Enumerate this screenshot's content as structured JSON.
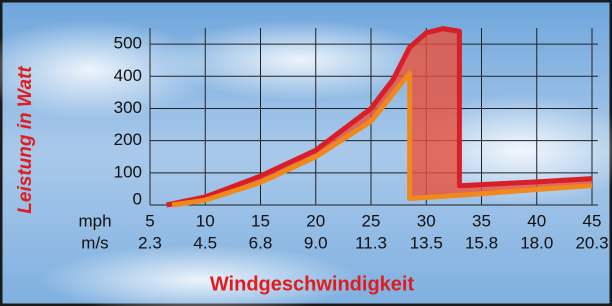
{
  "chart_data": {
    "type": "line",
    "ylabel": "Leistung in Watt",
    "xlabel": "Windgeschwindigkeit",
    "x_unit": "mph",
    "x2_unit": "m/s",
    "xlim": [
      5,
      45
    ],
    "ylim": [
      0,
      550
    ],
    "xticks": [
      5,
      10,
      15,
      20,
      25,
      30,
      35,
      40,
      45
    ],
    "x2ticks": [
      {
        "value": 5,
        "label": "2.3"
      },
      {
        "value": 10,
        "label": "4.5"
      },
      {
        "value": 15,
        "label": "6.8"
      },
      {
        "value": 20,
        "label": "9.0"
      },
      {
        "value": 25,
        "label": "11.3"
      },
      {
        "value": 30,
        "label": "13.5"
      },
      {
        "value": 35,
        "label": "15.8"
      },
      {
        "value": 40,
        "label": "18.0"
      },
      {
        "value": 45,
        "label": "20.3"
      }
    ],
    "yticks": [
      0,
      100,
      200,
      300,
      400,
      500
    ],
    "grid": true,
    "series": [
      {
        "color": "#d81e28",
        "x": [
          6.5,
          10,
          15,
          20,
          25,
          27,
          28.5,
          30,
          31.5,
          33,
          33,
          40,
          45
        ],
        "values": [
          0,
          25,
          90,
          170,
          300,
          390,
          490,
          535,
          548,
          540,
          60,
          72,
          82
        ]
      },
      {
        "color": "#f0881c",
        "x": [
          7,
          10,
          15,
          20,
          25,
          28.5,
          28.5,
          35,
          40,
          45
        ],
        "values": [
          0,
          15,
          70,
          150,
          260,
          410,
          20,
          35,
          48,
          60
        ]
      }
    ]
  }
}
